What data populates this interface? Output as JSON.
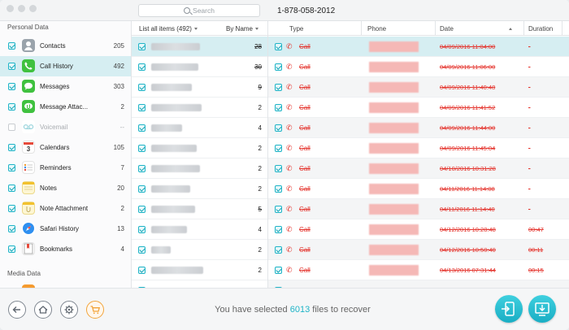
{
  "window": {
    "search_placeholder": "Search",
    "contact_title": "1-878-058-2012"
  },
  "sidebar": {
    "personal_title": "Personal Data",
    "media_title": "Media Data",
    "items": [
      {
        "label": "Contacts",
        "count": "205",
        "icon": "contacts-icon",
        "checked": true
      },
      {
        "label": "Call History",
        "count": "492",
        "icon": "phone-icon",
        "checked": true,
        "active": true
      },
      {
        "label": "Messages",
        "count": "303",
        "icon": "messages-icon",
        "checked": true
      },
      {
        "label": "Message Attac...",
        "count": "2",
        "icon": "message-attachment-icon",
        "checked": true
      },
      {
        "label": "Voicemail",
        "count": "--",
        "icon": "voicemail-icon",
        "checked": false,
        "disabled": true
      },
      {
        "label": "Calendars",
        "count": "105",
        "icon": "calendar-icon",
        "checked": true
      },
      {
        "label": "Reminders",
        "count": "7",
        "icon": "reminders-icon",
        "checked": true
      },
      {
        "label": "Notes",
        "count": "20",
        "icon": "notes-icon",
        "checked": true
      },
      {
        "label": "Note Attachment",
        "count": "2",
        "icon": "note-attachment-icon",
        "checked": true
      },
      {
        "label": "Safari History",
        "count": "13",
        "icon": "safari-icon",
        "checked": true
      },
      {
        "label": "Bookmarks",
        "count": "4",
        "icon": "bookmarks-icon",
        "checked": true
      }
    ]
  },
  "list": {
    "header_left": "List all items (492)",
    "header_right": "By Name",
    "rows": [
      {
        "count": "28",
        "strike": true
      },
      {
        "count": "30",
        "strike": true
      },
      {
        "count": "9",
        "strike": true
      },
      {
        "count": "2",
        "strike": false
      },
      {
        "count": "4",
        "strike": false
      },
      {
        "count": "2",
        "strike": false
      },
      {
        "count": "2",
        "strike": false
      },
      {
        "count": "2",
        "strike": false
      },
      {
        "count": "5",
        "strike": true
      },
      {
        "count": "4",
        "strike": false
      },
      {
        "count": "2",
        "strike": false
      },
      {
        "count": "2",
        "strike": false
      }
    ]
  },
  "table": {
    "columns": {
      "type": "Type",
      "phone": "Phone",
      "date": "Date",
      "duration": "Duration"
    },
    "rows": [
      {
        "type": "Call",
        "date": "04/09/2016 11:04:00",
        "duration": "-"
      },
      {
        "type": "Call",
        "date": "04/09/2016 11:06:00",
        "duration": "-"
      },
      {
        "type": "Call",
        "date": "04/09/2016 11:40:48",
        "duration": "-"
      },
      {
        "type": "Call",
        "date": "04/09/2016 11:41:52",
        "duration": "-"
      },
      {
        "type": "Call",
        "date": "04/09/2016 11:44:00",
        "duration": "-"
      },
      {
        "type": "Call",
        "date": "04/09/2016 11:45:04",
        "duration": "-"
      },
      {
        "type": "Call",
        "date": "04/10/2016 10:31:28",
        "duration": "-"
      },
      {
        "type": "Call",
        "date": "04/11/2016 11:14:08",
        "duration": "-"
      },
      {
        "type": "Call",
        "date": "04/11/2016 11:14:40",
        "duration": "-"
      },
      {
        "type": "Call",
        "date": "04/12/2016 10:28:48",
        "duration": "00:47"
      },
      {
        "type": "Call",
        "date": "04/12/2016 10:50:40",
        "duration": "00:11"
      },
      {
        "type": "Call",
        "date": "04/13/2016 07:31:44",
        "duration": "00:15"
      }
    ]
  },
  "footer": {
    "status_prefix": "You have selected ",
    "selected_count": "6013",
    "status_suffix": " files to recover"
  },
  "colors": {
    "accent": "#1fb4c7",
    "deleted_red": "#e4322b",
    "cart_orange": "#f2a43a"
  }
}
